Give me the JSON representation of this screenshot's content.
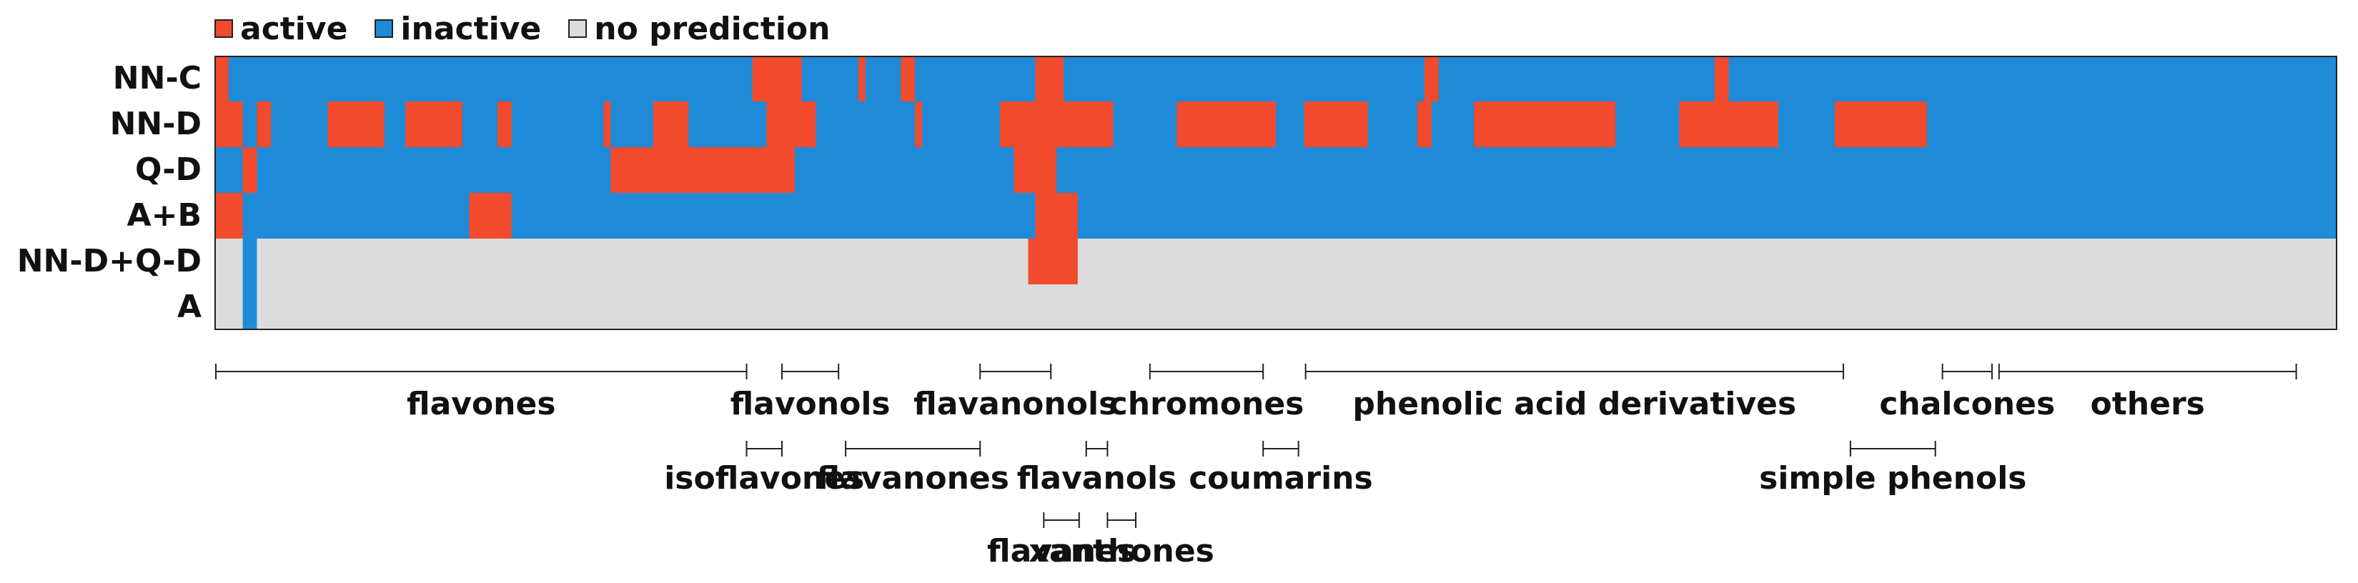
{
  "chart_data": {
    "type": "heatmap",
    "title": "",
    "legend": [
      {
        "key": "active",
        "label": "active",
        "color": "#f14a2c"
      },
      {
        "key": "inactive",
        "label": "inactive",
        "color": "#1f8ad8"
      },
      {
        "key": "none",
        "label": "no prediction",
        "color": "#dcdcdc"
      }
    ],
    "rows": [
      "NN-C",
      "NN-D",
      "Q-D",
      "A+B",
      "NN-D+Q-D",
      "A"
    ],
    "n_compounds": 300,
    "cells": [
      "AAIIIIIIIIIIIIIIIIIIIIIIIIIIIIIIIIIIIIIIIIIIIIIIIIIIIIIIIIIIIIIIIIIIIIIIIIIIAAAAAAAIIIIIIIIAIIIIIAAIIIIIIIIIIIIIIIIIAAAAIIIIIIIIIIIIIIIIIIIIIIIIIIIIIIIIIIIIIIIIIIIIIIIIIIIAAIIIIIIIIIIIIIIIIIIIIIIIIIIIIIIIIIIIIIIIAAIIIIIIIIIIIIIIIIIIIIIIIIIIIIIIIIIIIIIIIIIIIIIIIIIIIIIIIIIIIIIIIIIIIIIIIIIIIIIIIIIIIIIIIIIIII",
      "AAAAIIAAIIIIIIIIAAAAAAAAIIIAAAAAAAAIIIIIAAIIIIIIIIIIIIIAIIIIIIAAAAAIIIIIIIIIIIAAAAAAAIIIIIIIIIIIIIIAIIIIIIIIIIIAAAAAAAAAAAAAAAAIIIIIIIIIAAAAAAAAAAAAAAIIIIAAAAAAAAAIIIIIIIAAIIIIIIAAAAAAAAAAAAAAAAAAAAIIIIIIIIIAAAAAAAAAAAAAAIIIIIIIIAAAAAAAAAAAAAIIIIIIIIIIIIIIIIIIIIIIIIIIIIIIIIIIIIIIIIIIIIIIIIIIIIIIIIIIIIIIIIIIIIIIIIIIIIIIIIIIIIIIIII",
      "IIIIAAIIIIIIIIIIIIIIIIIIIIIIIIIIIIIIIIIIIIIIIIIIIIIIIIIIAAAAAAAAAAAAAAAAAAAAAAAAAAIIIIIIIIIIIIIIIIIIIIIIIIIIIIIIIAAAAAAIIIIIIIIIIIIIIIIIIIIIIIIIIIIIIIIIIIIIIIIIIIIIIIIIIIIIIIIIIIIIIIIIIIIIIIIIIIIIIIIIIIIIIIIIIIIIIIIIIIIIIIIIIIIIIIIIIIIIIIIIIIIIIIIIIIIIIIIIIIIIIIIIIIIIIIIIIIIIIIIIIIIIIIIIIIIIIIIIIIIIIIIIIIIIIIIIIIIIIIIIIIIIIIIII",
      "AAAAIIIIIIIIIIIIIIIIIIIIIIIIIIIIIIIIAAAAAAIIIIIIIIIIIIIIIIIIIIIIIIIIIIIIIIIIIIIIIIIIIIIIIIIIIIIIIIIIIIIIIIIIIIIIIIIIAAAAAAIIIIIIIIIIIIIIIIIIIIIIIIIIIIIIIIIIIIIIIIIIIIIIIIIIIIIIIIIIIIIIIIIIIIIIIIIIIIIIIIIIIIIIIIIIIIIIIIIIIIIIIIIIIIIIIIIIIIIIIIIIIIIIIIIIIIIIIIIIIIIIIIIIIIIIIIIIIIIIIIIIIIIIIIIIIIIIIIIIIIIIIIIIIIIIIIIIIIIIIIIIIIIIIII",
      "NNNNIINNNNNNNNNNNNNNNNNNNNNNNNNNNNNNNNNNNNNNNNNNNNNNNNNNNNNNNNNNNNNNNNNNNNNNNNNNNNNNNNNNNNNNNNNNNNNNNNNNNNNNNNNNNNNAAAAAAANNNNNNNNNNNNNNNNNNNNNNNNNNNNNNNNNNNNNNNNNNNNNNNNNNNNNNNNNNNNNNNNNNNNNNNNNNNNNNNNNNNNNNNNNNNNNNNNNNNNNNNNNNNNNNNNNNNNNNNNNNNNNNNNNNNNNNNNNNNNNNNNNNNNNNNNNNNNNNNNNNNNNNNNNNNNNNNNNNNNNNNNNNNNNNNNNNNNNNNNNNNNNN",
      "NNNNIINNNNNNNNNNNNNNNNNNNNNNNNNNNNNNNNNNNNNNNNNNNNNNNNNNNNNNNNNNNNNNNNNNNNNNNNNNNNNNNNNNNNNNNNNNNNNNNNNNNNNNNNNNNNNNNNNNNNNNNNNNNNNNNNNNNNNNNNNNNNNNNNNNNNNNNNNNNNNNNNNNNNNNNNNNNNNNNNNNNNNNNNNNNNNNNNNNNNNNNNNNNNNNNNNNNNNNNNNNNNNNNNNNNNNNNNNNNNNNNNNNNNNNNNNNNNNNNNNNNNNNNNNNNNNNNNNNNNNNNNNNNNNNNNNNNNNNNNNNNNNNNNNNNNNNNNNNNNNNN"
    ],
    "groups": [
      {
        "label": "flavones",
        "start": 0,
        "end": 75,
        "tier": 0
      },
      {
        "label": "flavonols",
        "start": 80,
        "end": 88,
        "tier": 0
      },
      {
        "label": "flavanonols",
        "start": 108,
        "end": 118,
        "tier": 0
      },
      {
        "label": "chromones",
        "start": 132,
        "end": 148,
        "tier": 0
      },
      {
        "label": "phenolic acid derivatives",
        "start": 154,
        "end": 230,
        "tier": 0
      },
      {
        "label": "chalcones",
        "start": 244,
        "end": 251,
        "tier": 0
      },
      {
        "label": "others",
        "start": 252,
        "end": 294,
        "tier": 0
      },
      {
        "label": "isoflavones",
        "start": 75,
        "end": 80,
        "tier": 1
      },
      {
        "label": "flavanones",
        "start": 89,
        "end": 108,
        "tier": 1
      },
      {
        "label": "flavanols",
        "start": 123,
        "end": 126,
        "tier": 1
      },
      {
        "label": "coumarins",
        "start": 148,
        "end": 153,
        "tier": 1
      },
      {
        "label": "simple phenols",
        "start": 231,
        "end": 243,
        "tier": 1
      },
      {
        "label": "flavanes",
        "start": 117,
        "end": 122,
        "tier": 2
      },
      {
        "label": "xanthones",
        "start": 126,
        "end": 130,
        "tier": 2
      }
    ]
  }
}
